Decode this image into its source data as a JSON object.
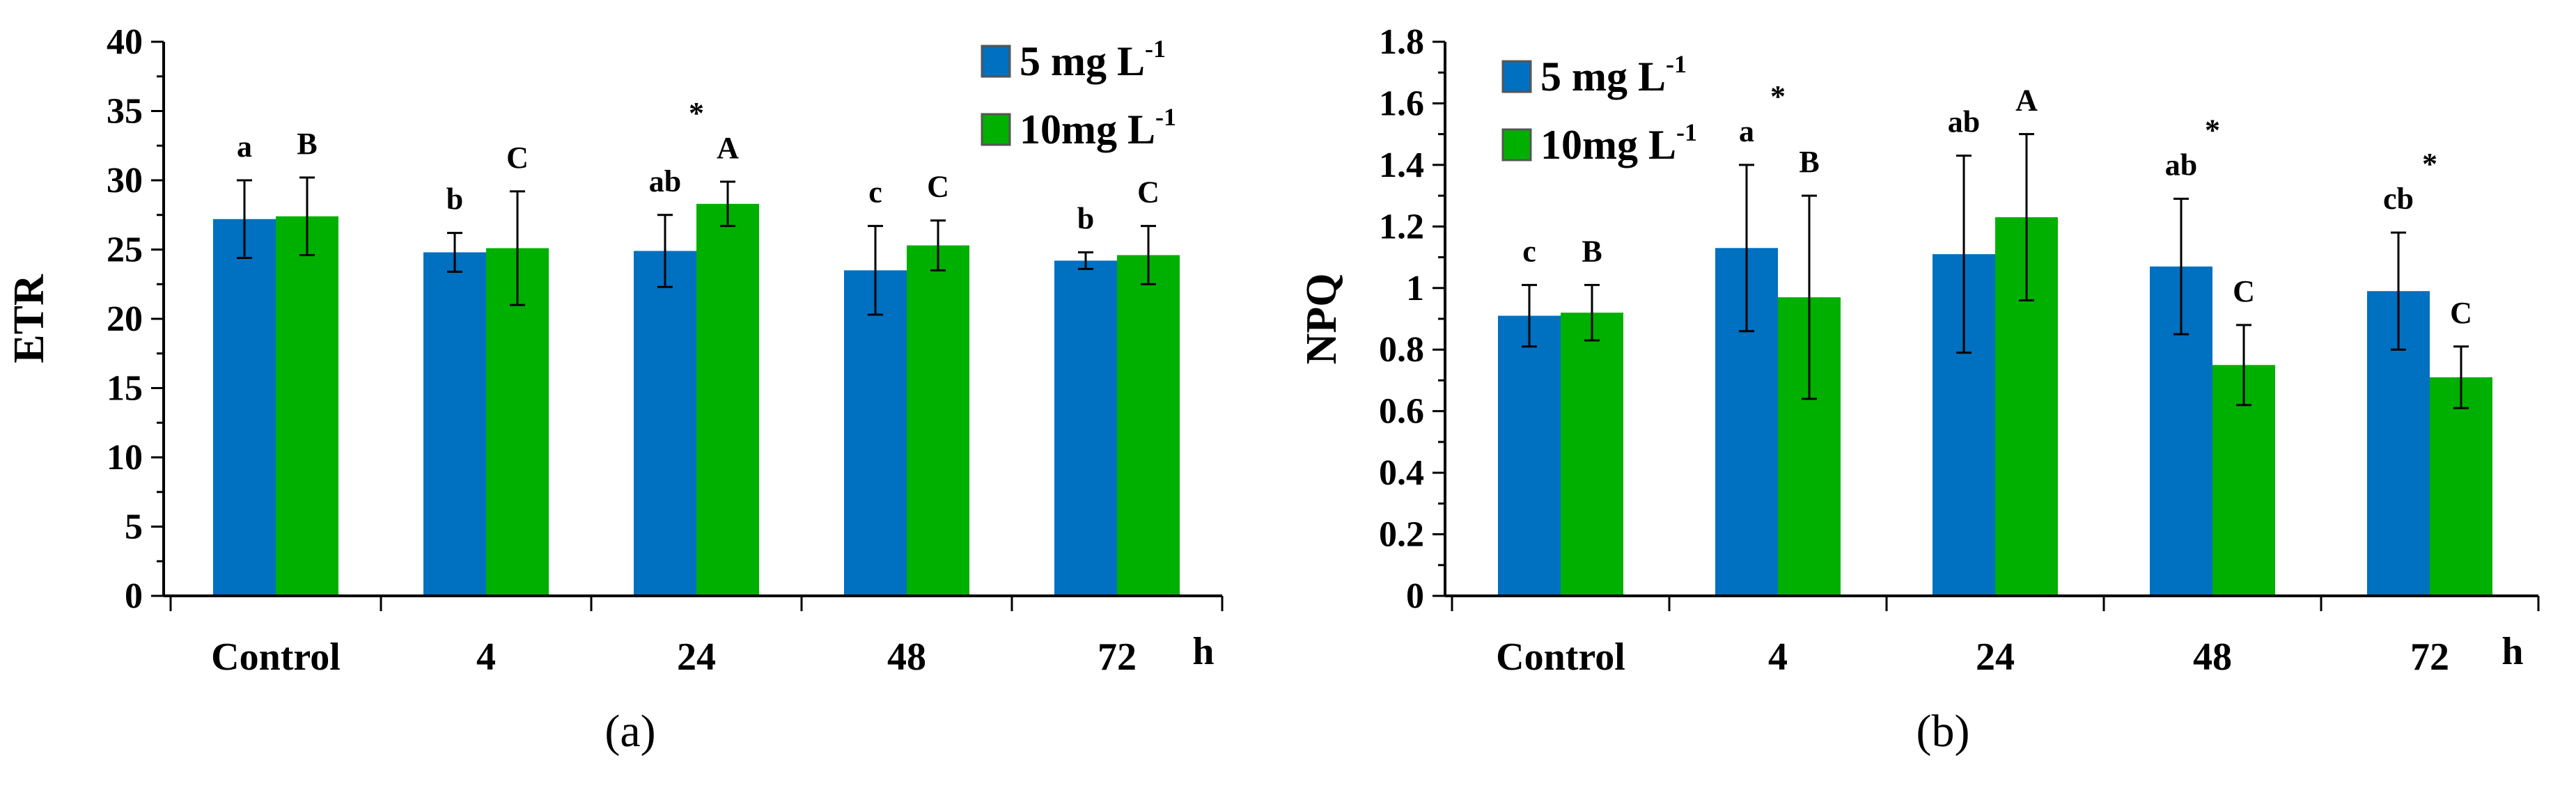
{
  "chart_data": [
    {
      "type": "bar",
      "panel_label": "(a)",
      "ylabel": "ETR",
      "xunit": "h",
      "ylim": [
        0,
        40
      ],
      "yticks": [
        "0",
        "5",
        "10",
        "15",
        "20",
        "25",
        "30",
        "35",
        "40"
      ],
      "categories": [
        "Control",
        "4",
        "24",
        "48",
        "72"
      ],
      "legend_position": "top-right",
      "series": [
        {
          "name": "5 mg L",
          "sup": "-1",
          "color": "#0070C0",
          "values": [
            27.2,
            24.8,
            24.9,
            23.5,
            24.2
          ],
          "errors": [
            2.8,
            1.4,
            2.6,
            3.2,
            0.6
          ],
          "labels": [
            "a",
            "b",
            "ab",
            "c",
            "b"
          ]
        },
        {
          "name": "10mg L",
          "sup": "-1",
          "color": "#00B000",
          "values": [
            27.4,
            25.1,
            28.3,
            25.3,
            24.6
          ],
          "errors": [
            2.8,
            4.1,
            1.6,
            1.8,
            2.1
          ],
          "labels": [
            "B",
            "C",
            "A",
            "C",
            "C"
          ]
        }
      ],
      "stars": [
        "",
        "",
        "*",
        "",
        ""
      ]
    },
    {
      "type": "bar",
      "panel_label": "(b)",
      "ylabel": "NPQ",
      "xunit": "h",
      "ylim": [
        0,
        1.8
      ],
      "yticks": [
        "0",
        "0.2",
        "0.4",
        "0.6",
        "0.8",
        "1",
        "1.2",
        "1.4",
        "1.6",
        "1.8"
      ],
      "categories": [
        "Control",
        "4",
        "24",
        "48",
        "72"
      ],
      "legend_position": "top-left",
      "series": [
        {
          "name": "5 mg L",
          "sup": "-1",
          "color": "#0070C0",
          "values": [
            0.91,
            1.13,
            1.11,
            1.07,
            0.99
          ],
          "errors": [
            0.1,
            0.27,
            0.32,
            0.22,
            0.19
          ],
          "labels": [
            "c",
            "a",
            "ab",
            "ab",
            "cb"
          ]
        },
        {
          "name": "10mg L",
          "sup": "-1",
          "color": "#00B000",
          "values": [
            0.92,
            0.97,
            1.23,
            0.75,
            0.71
          ],
          "errors": [
            0.09,
            0.33,
            0.27,
            0.13,
            0.1
          ],
          "labels": [
            "B",
            "B",
            "A",
            "C",
            "C"
          ]
        }
      ],
      "stars": [
        "",
        "*",
        "",
        "*",
        "*"
      ]
    }
  ]
}
